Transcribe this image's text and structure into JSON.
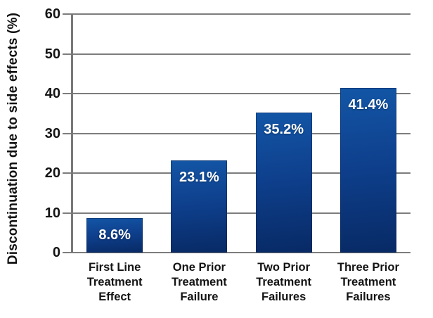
{
  "chart_data": {
    "type": "bar",
    "title": "",
    "ylabel": "Discontinuation due to side effects (%)",
    "xlabel": "",
    "categories": [
      [
        "First Line",
        "Treatment",
        "Effect"
      ],
      [
        "One Prior",
        "Treatment",
        "Failure"
      ],
      [
        "Two Prior",
        "Treatment",
        "Failures"
      ],
      [
        "Three Prior",
        "Treatment",
        "Failures"
      ]
    ],
    "values": [
      8.6,
      23.1,
      35.2,
      41.4
    ],
    "value_labels": [
      "8.6%",
      "23.1%",
      "35.2%",
      "41.4%"
    ],
    "yticks": [
      0,
      10,
      20,
      30,
      40,
      50,
      60
    ],
    "ylim": [
      0,
      60
    ],
    "grid": true,
    "legend": "none",
    "colors": {
      "bar_top": "#1356a6",
      "bar_bottom": "#082a65",
      "gridline": "#7d7d7d",
      "axis": "#787878",
      "text": "#141414",
      "value_label": "#ffffff",
      "background": "#ffffff"
    }
  }
}
